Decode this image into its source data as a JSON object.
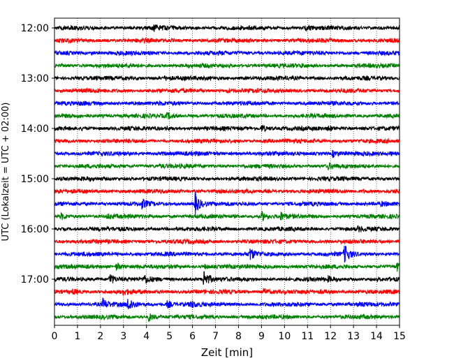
{
  "chart_data": {
    "type": "line",
    "title": "",
    "xlabel": "Zeit  [min]",
    "ylabel": "UTC (Lokalzeit = UTC + 02:00)",
    "xlim": [
      0,
      15
    ],
    "x_ticks": [
      "0",
      "1",
      "2",
      "3",
      "4",
      "5",
      "6",
      "7",
      "8",
      "9",
      "10",
      "11",
      "12",
      "13",
      "14",
      "15"
    ],
    "y_ticks": [
      "12:00",
      "13:00",
      "14:00",
      "15:00",
      "16:00",
      "17:00"
    ],
    "grid": "vertical dotted at each minute",
    "trace_interval_min": 15,
    "trace_colors": [
      "#000000",
      "#ff0000",
      "#0000ff",
      "#008000"
    ],
    "traces": [
      {
        "start": "12:00",
        "events": [
          {
            "t": 4.3,
            "amp": 1.6
          },
          {
            "t": 10.9,
            "amp": 1.3
          },
          {
            "t": 15.0,
            "amp": 1.3
          }
        ]
      },
      {
        "start": "12:15",
        "events": []
      },
      {
        "start": "12:30",
        "events": [
          {
            "t": 1.6,
            "amp": 1.2
          }
        ]
      },
      {
        "start": "12:45",
        "events": [
          {
            "t": 3.2,
            "amp": 1.2
          },
          {
            "t": 10.7,
            "amp": 1.2
          }
        ]
      },
      {
        "start": "13:00",
        "events": [
          {
            "t": 4.8,
            "amp": 1.4
          }
        ]
      },
      {
        "start": "13:15",
        "events": [
          {
            "t": 7.5,
            "amp": 1.4
          },
          {
            "t": 8.7,
            "amp": 1.2
          }
        ]
      },
      {
        "start": "13:30",
        "events": [
          {
            "t": 1.1,
            "amp": 1.1
          }
        ]
      },
      {
        "start": "13:45",
        "events": [
          {
            "t": 4.9,
            "amp": 1.6
          },
          {
            "t": 2.0,
            "amp": 1.1
          }
        ]
      },
      {
        "start": "14:00",
        "events": [
          {
            "t": 1.2,
            "amp": 1.3
          },
          {
            "t": 4.9,
            "amp": 1.3
          },
          {
            "t": 9.0,
            "amp": 1.9
          },
          {
            "t": 11.9,
            "amp": 1.5
          }
        ]
      },
      {
        "start": "14:15",
        "events": []
      },
      {
        "start": "14:30",
        "events": [
          {
            "t": 4.7,
            "amp": 1.2
          },
          {
            "t": 12.1,
            "amp": 1.8
          },
          {
            "t": 14.6,
            "amp": 1.3
          }
        ]
      },
      {
        "start": "14:45",
        "events": [
          {
            "t": 4.6,
            "amp": 1.2
          },
          {
            "t": 11.9,
            "amp": 1.7
          }
        ]
      },
      {
        "start": "15:00",
        "events": []
      },
      {
        "start": "15:15",
        "events": [
          {
            "t": 13.4,
            "amp": 1.2
          }
        ]
      },
      {
        "start": "15:30",
        "events": [
          {
            "t": 3.8,
            "amp": 2.0
          },
          {
            "t": 6.1,
            "amp": 3.8
          },
          {
            "t": 14.2,
            "amp": 1.3
          }
        ]
      },
      {
        "start": "15:45",
        "events": [
          {
            "t": 0.3,
            "amp": 1.6
          },
          {
            "t": 2.3,
            "amp": 1.5
          },
          {
            "t": 9.0,
            "amp": 2.2
          },
          {
            "t": 9.8,
            "amp": 2.0
          }
        ]
      },
      {
        "start": "16:00",
        "events": [
          {
            "t": 13.2,
            "amp": 1.4
          }
        ]
      },
      {
        "start": "16:15",
        "events": []
      },
      {
        "start": "16:30",
        "events": [
          {
            "t": 8.5,
            "amp": 2.3
          },
          {
            "t": 12.6,
            "amp": 3.2
          }
        ]
      },
      {
        "start": "16:45",
        "events": [
          {
            "t": 2.7,
            "amp": 2.0
          },
          {
            "t": 6.5,
            "amp": 1.5
          },
          {
            "t": 14.9,
            "amp": 1.8
          }
        ]
      },
      {
        "start": "17:00",
        "events": [
          {
            "t": 2.4,
            "amp": 2.5
          },
          {
            "t": 3.9,
            "amp": 2.0
          },
          {
            "t": 6.5,
            "amp": 3.3
          },
          {
            "t": 11.9,
            "amp": 1.5
          }
        ]
      },
      {
        "start": "17:15",
        "events": [
          {
            "t": 0.8,
            "amp": 1.6
          },
          {
            "t": 3.0,
            "amp": 1.6
          },
          {
            "t": 9.1,
            "amp": 1.8
          },
          {
            "t": 11.6,
            "amp": 1.3
          }
        ]
      },
      {
        "start": "17:30",
        "events": [
          {
            "t": 2.1,
            "amp": 2.2
          },
          {
            "t": 3.2,
            "amp": 2.8
          },
          {
            "t": 4.9,
            "amp": 1.8
          },
          {
            "t": 5.9,
            "amp": 1.8
          },
          {
            "t": 13.2,
            "amp": 1.3
          }
        ]
      },
      {
        "start": "17:45",
        "events": [
          {
            "t": 4.1,
            "amp": 2.0
          }
        ]
      }
    ]
  }
}
